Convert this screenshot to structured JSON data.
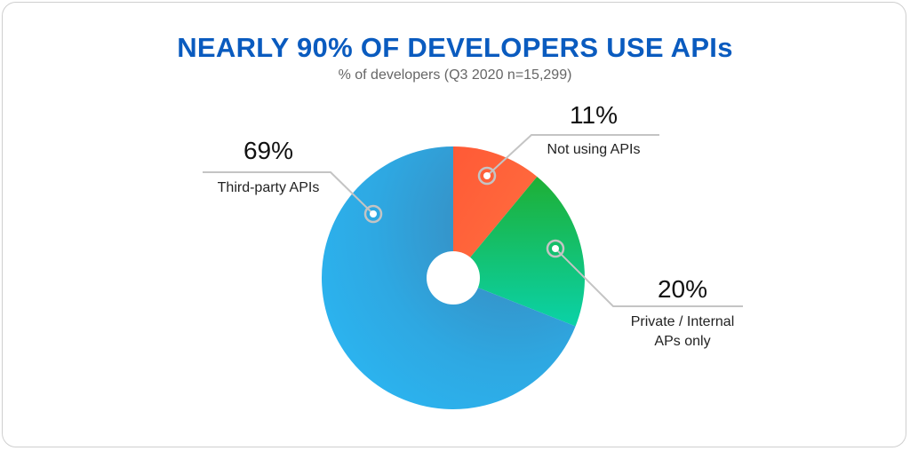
{
  "chart_data": {
    "type": "pie",
    "title": "NEARLY 90% OF DEVELOPERS USE APIs",
    "subtitle": "% of developers (Q3 2020 n=15,299)",
    "donut": true,
    "slices": [
      {
        "label": "Not using APIs",
        "value": 11,
        "value_label": "11%",
        "color": "#ff6038",
        "color2": "#ff6a3d"
      },
      {
        "label": "Private / Internal APs only",
        "value": 20,
        "value_label": "20%",
        "color": "#1db33a",
        "color2": "#0fcfa5"
      },
      {
        "label": "Third-party APIs",
        "value": 69,
        "value_label": "69%",
        "color": "#2fb3ee",
        "color2": "#3a8fc0"
      }
    ],
    "legend": "none"
  }
}
